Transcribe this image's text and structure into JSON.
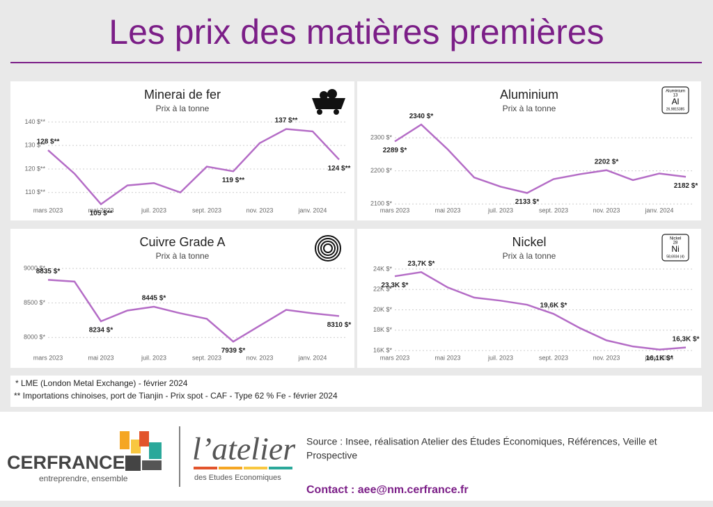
{
  "header": {
    "title": "Les prix des matières premières"
  },
  "chart_data": [
    {
      "type": "line",
      "title": "Minerai de fer",
      "subtitle": "Prix à la tonne",
      "categories": [
        "mars 2023",
        null,
        "mai 2023",
        null,
        "juil. 2023",
        null,
        "sept. 2023",
        null,
        "nov. 2023",
        null,
        "janv. 2024",
        null
      ],
      "values": [
        128,
        118,
        105,
        113,
        114,
        110,
        121,
        119,
        131,
        137,
        136,
        124
      ],
      "value_labels": [
        "128 $**",
        null,
        "105 $**",
        null,
        null,
        null,
        null,
        "119 $**",
        null,
        "137 $**",
        null,
        "124 $**"
      ],
      "color": "#b46cc6",
      "grid": true,
      "ylim": [
        104,
        141
      ],
      "yticks": [
        {
          "value": 110,
          "label": "110 $**"
        },
        {
          "value": 120,
          "label": "120 $**"
        },
        {
          "value": 130,
          "label": "130 $**"
        },
        {
          "value": 140,
          "label": "140 $**"
        }
      ]
    },
    {
      "type": "line",
      "title": "Aluminium",
      "subtitle": "Prix à la tonne",
      "categories": [
        "mars 2023",
        null,
        "mai 2023",
        null,
        "juil. 2023",
        null,
        "sept. 2023",
        null,
        "nov. 2023",
        null,
        "janv. 2024",
        null
      ],
      "values": [
        2289,
        2340,
        2265,
        2180,
        2152,
        2133,
        2175,
        2190,
        2202,
        2172,
        2192,
        2182
      ],
      "value_labels": [
        "2289 $*",
        "2340 $*",
        null,
        null,
        null,
        "2133 $*",
        null,
        null,
        "2202 $*",
        null,
        null,
        "2182 $*"
      ],
      "color": "#b46cc6",
      "grid": true,
      "ylim": [
        2092,
        2355
      ],
      "yticks": [
        {
          "value": 2100,
          "label": "2100 $*"
        },
        {
          "value": 2200,
          "label": "2200 $*"
        },
        {
          "value": 2300,
          "label": "2300 $*"
        }
      ],
      "element": {
        "name": "Aluminium",
        "number": "13",
        "symbol": "Al",
        "mass": "26,9815385"
      }
    },
    {
      "type": "line",
      "title": "Cuivre Grade A",
      "subtitle": "Prix à la tonne",
      "categories": [
        "mars 2023",
        null,
        "mai 2023",
        null,
        "juil. 2023",
        null,
        "sept. 2023",
        null,
        "nov. 2023",
        null,
        "janv. 2024",
        null
      ],
      "values": [
        8835,
        8810,
        8234,
        8390,
        8445,
        8350,
        8270,
        7939,
        8170,
        8400,
        8350,
        8310
      ],
      "value_labels": [
        "8835 $*",
        null,
        "8234 $*",
        null,
        "8445 $*",
        null,
        null,
        "7939 $*",
        null,
        null,
        null,
        "8310 $*"
      ],
      "color": "#b46cc6",
      "grid": true,
      "ylim": [
        7760,
        9020
      ],
      "yticks": [
        {
          "value": 8000,
          "label": "8000 $*"
        },
        {
          "value": 8500,
          "label": "8500 $*"
        },
        {
          "value": 9000,
          "label": "9000 $*"
        }
      ]
    },
    {
      "type": "line",
      "title": "Nickel",
      "subtitle": "Prix à la tonne",
      "categories": [
        "mars 2023",
        null,
        "mai 2023",
        null,
        "juil. 2023",
        null,
        "sept. 2023",
        null,
        "nov. 2023",
        null,
        "janv. 2024",
        null
      ],
      "values": [
        23300,
        23700,
        22200,
        21200,
        20900,
        20500,
        19600,
        18200,
        17000,
        16400,
        16100,
        16300
      ],
      "value_labels": [
        "23,3K $*",
        "23,7K $*",
        null,
        null,
        null,
        null,
        "19,6K $*",
        null,
        null,
        null,
        "16,1K $*",
        "16,3K $*"
      ],
      "color": "#b46cc6",
      "grid": true,
      "ylim": [
        15660,
        24200
      ],
      "yticks": [
        {
          "value": 16000,
          "label": "16K $*"
        },
        {
          "value": 18000,
          "label": "18K $*"
        },
        {
          "value": 20000,
          "label": "20K $*"
        },
        {
          "value": 22000,
          "label": "22K $*"
        },
        {
          "value": 24000,
          "label": "24K $*"
        }
      ],
      "element": {
        "name": "Nickel",
        "number": "28",
        "symbol": "Ni",
        "mass": "58,6934 (4)"
      }
    }
  ],
  "notes": [
    "* LME (London Metal Exchange) - février 2024",
    "** Importations chinoises, port de Tianjin - Prix spot - CAF - Type 62 % Fe - février 2024"
  ],
  "footer": {
    "brand": "CERFRANCE",
    "tagline": "entreprendre, ensemble",
    "atelier": "l’atelier",
    "atelier_sub": "des Etudes Economiques",
    "source": [
      "Source : Insee, réalisation Atelier des Études Économiques, Références, Veille et",
      "Prospective"
    ],
    "contact": "Contact : aee@nm.cerfrance.fr"
  }
}
